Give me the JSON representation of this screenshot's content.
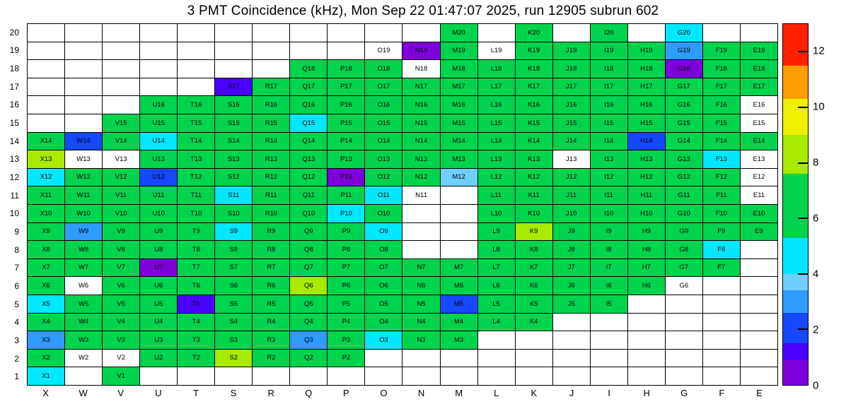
{
  "title": "3 PMT Coincidence (kHz), Mon Sep 22 01:47:07 2025, run 12905 subrun 602",
  "chart_data": {
    "type": "heatmap",
    "title": "3 PMT Coincidence (kHz), Mon Sep 22 01:47:07 2025, run 12905 subrun 602",
    "units": "kHz",
    "columns": [
      "X",
      "W",
      "V",
      "U",
      "T",
      "S",
      "R",
      "Q",
      "P",
      "O",
      "N",
      "M",
      "L",
      "K",
      "J",
      "I",
      "H",
      "G",
      "F",
      "E"
    ],
    "rows": [
      20,
      19,
      18,
      17,
      16,
      15,
      14,
      13,
      12,
      11,
      10,
      9,
      8,
      7,
      6,
      5,
      4,
      3,
      2,
      1
    ],
    "colorbar": {
      "min": 0,
      "max": 13,
      "ticks": [
        0,
        2,
        4,
        6,
        8,
        10,
        12
      ]
    },
    "palette": [
      {
        "max": 0.9,
        "color": "#7d00db"
      },
      {
        "max": 1.5,
        "color": "#4900ff"
      },
      {
        "max": 2.6,
        "color": "#1648ff"
      },
      {
        "max": 3.4,
        "color": "#2e9bff"
      },
      {
        "max": 4.0,
        "color": "#6fcfff"
      },
      {
        "max": 5.3,
        "color": "#00e8ff"
      },
      {
        "max": 7.6,
        "color": "#00d34e"
      },
      {
        "max": 9.0,
        "color": "#a8ea00"
      },
      {
        "max": 10.3,
        "color": "#eef000"
      },
      {
        "max": 11.5,
        "color": "#ff9e00"
      },
      {
        "max": 13.0,
        "color": "#ff2100"
      }
    ],
    "no_data_color": "#ffffff",
    "cells": {
      "M20": 6.5,
      "K20": 6.5,
      "I20": 6.5,
      "G20": 4.5,
      "O19": null,
      "N19": 0.7,
      "M19": 6.5,
      "L19": null,
      "K19": 6.5,
      "J19": 6.5,
      "I19": 6.5,
      "H19": 6.5,
      "G19": 3.0,
      "F19": 6.5,
      "E19": 6.5,
      "Q18": 6.5,
      "P18": 6.5,
      "O18": 6.5,
      "N18": null,
      "M18": 6.5,
      "L18": 6.5,
      "K18": 6.5,
      "J18": 6.5,
      "I18": 6.5,
      "H18": 6.5,
      "G18": 0.7,
      "F18": 6.5,
      "E18": 6.5,
      "S17": 1.1,
      "R17": 6.5,
      "Q17": 6.5,
      "P17": 6.5,
      "O17": 6.5,
      "N17": 6.5,
      "M17": 6.5,
      "L17": 6.5,
      "K17": 6.5,
      "J17": 6.5,
      "I17": 6.5,
      "H17": 6.5,
      "G17": 6.5,
      "F17": 6.5,
      "E17": 6.5,
      "U16": 6.5,
      "T16": 6.5,
      "S16": 6.5,
      "R16": 6.5,
      "Q16": 6.5,
      "P16": 6.5,
      "O16": 6.5,
      "N16": 6.5,
      "M16": 6.5,
      "L16": 6.5,
      "K16": 6.5,
      "J16": 6.5,
      "I16": 6.5,
      "H16": 6.5,
      "G16": 6.5,
      "F16": 6.5,
      "E16": null,
      "V15": 6.5,
      "U15": 6.5,
      "T15": 6.5,
      "S15": 6.5,
      "R15": 6.5,
      "Q15": 4.5,
      "P15": 6.5,
      "O15": 6.5,
      "N15": 6.5,
      "M15": 6.5,
      "L15": 6.5,
      "K15": 6.5,
      "J15": 6.5,
      "I15": 6.5,
      "H15": 6.5,
      "G15": 6.5,
      "F15": 6.5,
      "E15": null,
      "X14": 6.5,
      "W14": 2.0,
      "V14": 6.5,
      "U14": 4.5,
      "T14": 6.5,
      "S14": 6.5,
      "R14": 6.5,
      "Q14": 6.5,
      "P14": 6.5,
      "O14": 6.5,
      "N14": 6.5,
      "M14": 6.5,
      "L14": 6.5,
      "K14": 6.5,
      "J14": 6.5,
      "I14": 6.5,
      "H14": 2.0,
      "G14": 6.5,
      "F14": 6.5,
      "E14": 6.5,
      "X13": 8.3,
      "W13": null,
      "V13": null,
      "U13": 6.5,
      "T13": 6.5,
      "S13": 6.5,
      "R13": 6.5,
      "Q13": 6.5,
      "P13": 6.5,
      "O13": 6.5,
      "N13": 6.5,
      "M13": 6.5,
      "L13": 6.5,
      "K13": 6.5,
      "J13": null,
      "I13": 6.5,
      "H13": 6.5,
      "G13": 6.5,
      "F13": 4.5,
      "E13": null,
      "X12": 4.5,
      "W12": 6.5,
      "V12": 6.5,
      "U12": 2.0,
      "T12": 6.5,
      "S12": 6.5,
      "R12": 6.5,
      "Q12": 6.5,
      "P12": 0.7,
      "O12": 6.5,
      "N12": 6.5,
      "M12": 3.7,
      "L12": 6.5,
      "K12": 6.5,
      "J12": 6.5,
      "I12": 6.5,
      "H12": 6.5,
      "G12": 6.5,
      "F12": 6.5,
      "E12": null,
      "X11": 6.5,
      "W11": 6.5,
      "V11": 6.5,
      "U11": 6.5,
      "T11": 6.5,
      "S11": 4.5,
      "R11": 6.5,
      "Q11": 6.5,
      "P11": 6.5,
      "O11": 4.5,
      "N11": null,
      "L11": 6.5,
      "K11": 6.5,
      "J11": 6.5,
      "I11": 6.5,
      "H11": 6.5,
      "G11": 6.5,
      "F11": 6.5,
      "E11": null,
      "X10": 6.5,
      "W10": 6.5,
      "V10": 6.5,
      "U10": 6.5,
      "T10": 6.5,
      "S10": 6.5,
      "R10": 6.5,
      "Q10": 6.5,
      "P10": 4.5,
      "O10": 6.5,
      "L10": 6.5,
      "K10": 6.5,
      "J10": 6.5,
      "I10": 6.5,
      "H10": 6.5,
      "G10": 6.5,
      "F10": 6.5,
      "E10": 6.5,
      "X9": 6.5,
      "W9": 3.0,
      "V9": 6.5,
      "U9": 6.5,
      "T9": 6.5,
      "S9": 4.5,
      "R9": 6.5,
      "Q9": 6.5,
      "P9": 6.5,
      "O9": 4.5,
      "L9": 6.5,
      "K9": 8.3,
      "J9": 6.5,
      "I9": 6.5,
      "H9": 6.5,
      "G9": 6.5,
      "F9": 6.5,
      "E9": 6.5,
      "X8": 6.5,
      "W8": 6.5,
      "V8": 6.5,
      "U8": 6.5,
      "T8": 6.5,
      "S8": 6.5,
      "R8": 6.5,
      "Q8": 6.5,
      "P8": 6.5,
      "O8": 6.5,
      "L8": 6.5,
      "K8": 6.5,
      "J8": 6.5,
      "I8": 6.5,
      "H8": 6.5,
      "G8": 6.5,
      "F8": 4.5,
      "X7": 6.5,
      "W7": 6.5,
      "V7": 6.5,
      "U7": 0.7,
      "T7": 6.5,
      "S7": 6.5,
      "R7": 6.5,
      "Q7": 6.5,
      "P7": 6.5,
      "O7": 6.5,
      "N7": 6.5,
      "M7": 6.5,
      "L7": 6.5,
      "K7": 6.5,
      "J7": 6.5,
      "I7": 6.5,
      "H7": 6.5,
      "G7": 6.5,
      "F7": 6.5,
      "X6": 6.5,
      "W6": null,
      "V6": 6.5,
      "U6": 6.5,
      "T6": 6.5,
      "S6": 6.5,
      "R6": 6.5,
      "Q6": 8.3,
      "P6": 6.5,
      "O6": 6.5,
      "N6": 6.5,
      "M6": 6.5,
      "L6": 6.5,
      "K6": 6.5,
      "J6": 6.5,
      "I6": 6.5,
      "H6": 6.5,
      "G6": null,
      "X5": 4.5,
      "W5": 6.5,
      "V5": 6.5,
      "U5": 6.5,
      "T5": 1.1,
      "S5": 6.5,
      "R5": 6.5,
      "Q5": 6.5,
      "P5": 6.5,
      "O5": 6.5,
      "N5": 6.5,
      "M5": 2.0,
      "L5": 6.5,
      "K5": 6.5,
      "J5": 6.5,
      "I5": 6.5,
      "X4": 6.5,
      "W4": 6.5,
      "V4": 6.5,
      "U4": 6.5,
      "T4": 6.5,
      "S4": 6.5,
      "R4": 6.5,
      "Q4": 6.5,
      "P4": 6.5,
      "O4": 6.5,
      "N4": 6.5,
      "M4": 6.5,
      "L4": 6.5,
      "K4": 6.5,
      "X3": 3.0,
      "W3": 6.5,
      "V3": 6.5,
      "U3": 6.5,
      "T3": 6.5,
      "S3": 6.5,
      "R3": 6.5,
      "Q3": 2.9,
      "P3": 6.5,
      "O3": 4.5,
      "N3": 6.5,
      "M3": 6.5,
      "X2": 6.5,
      "W2": null,
      "V2": null,
      "U2": 6.5,
      "T2": 6.5,
      "S2": 8.3,
      "R2": 6.5,
      "Q2": 6.5,
      "P2": 6.5,
      "X1": 4.5,
      "V1": 6.5
    }
  }
}
